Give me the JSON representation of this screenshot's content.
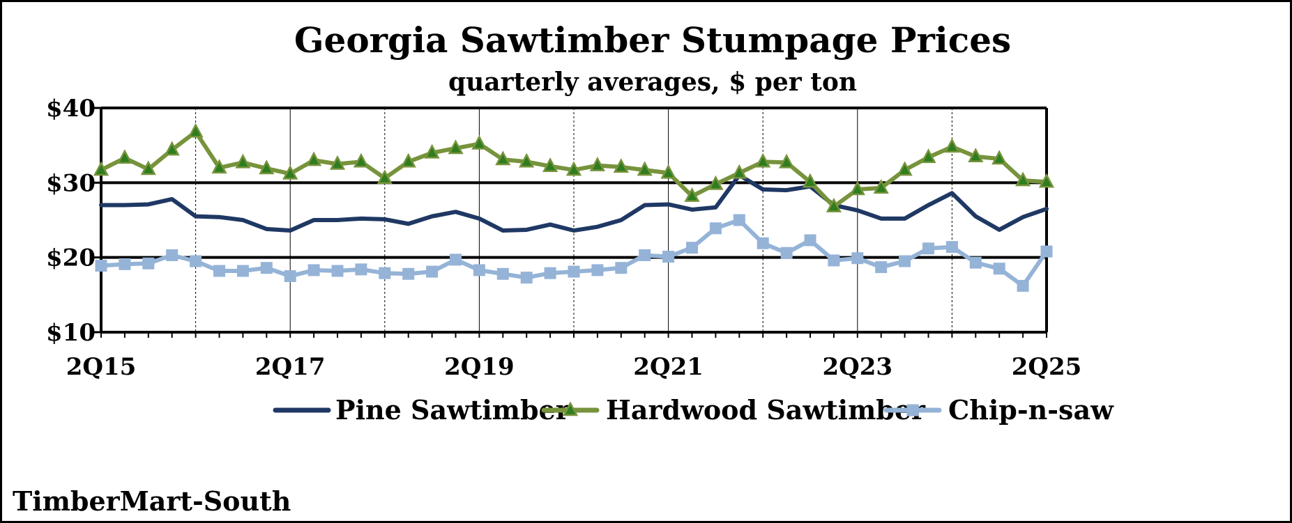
{
  "chart_data": {
    "type": "line",
    "title": "Georgia Sawtimber Stumpage Prices",
    "subtitle": "quarterly averages, $ per ton",
    "source": "TimberMart-South",
    "ylim": [
      10,
      40
    ],
    "y_ticks": [
      10,
      20,
      30,
      40
    ],
    "y_tick_labels": [
      "$10",
      "$20",
      "$30",
      "$40"
    ],
    "x": [
      "2Q15",
      "3Q15",
      "4Q15",
      "1Q16",
      "2Q16",
      "3Q16",
      "4Q16",
      "1Q17",
      "2Q17",
      "3Q17",
      "4Q17",
      "1Q18",
      "2Q18",
      "3Q18",
      "4Q18",
      "1Q19",
      "2Q19",
      "3Q19",
      "4Q19",
      "1Q20",
      "2Q20",
      "3Q20",
      "4Q20",
      "1Q21",
      "2Q21",
      "3Q21",
      "4Q21",
      "1Q22",
      "2Q22",
      "3Q22",
      "4Q22",
      "1Q23",
      "2Q23",
      "3Q23",
      "4Q23",
      "1Q24",
      "2Q24",
      "3Q24",
      "4Q24",
      "1Q25",
      "2Q25"
    ],
    "x_tick_labels": [
      "2Q15",
      "2Q17",
      "2Q19",
      "2Q21",
      "2Q23",
      "2Q25"
    ],
    "grid": {
      "horizontal": true,
      "vertical": true
    },
    "legend_position": "bottom",
    "series": [
      {
        "name": "Pine Sawtimber",
        "color": "#1f3864",
        "marker": "none",
        "values": [
          27.0,
          27.0,
          27.1,
          27.8,
          25.5,
          25.4,
          25.0,
          23.8,
          23.6,
          25.0,
          25.0,
          25.2,
          25.1,
          24.5,
          25.5,
          26.1,
          25.2,
          23.6,
          23.7,
          24.4,
          23.6,
          24.1,
          25.0,
          27.0,
          27.1,
          26.4,
          26.7,
          31.0,
          29.1,
          29.0,
          29.5,
          27.0,
          26.3,
          25.2,
          25.2,
          27.0,
          28.6,
          25.5,
          23.7,
          25.4,
          26.5
        ]
      },
      {
        "name": "Hardwood Sawtimber",
        "color": "#77933c",
        "marker": "triangle",
        "values": [
          31.7,
          33.3,
          31.8,
          34.4,
          36.8,
          32.0,
          32.7,
          31.9,
          31.2,
          33.0,
          32.5,
          32.8,
          30.6,
          32.8,
          34.0,
          34.6,
          35.2,
          33.1,
          32.8,
          32.2,
          31.7,
          32.3,
          32.1,
          31.7,
          31.3,
          28.2,
          29.8,
          31.3,
          32.8,
          32.7,
          30.1,
          26.8,
          29.1,
          29.3,
          31.7,
          33.4,
          34.8,
          33.5,
          33.2,
          30.3,
          30.1
        ]
      },
      {
        "name": "Chip-n-saw",
        "color": "#95b3d7",
        "marker": "square",
        "values": [
          18.9,
          19.1,
          19.2,
          20.3,
          19.5,
          18.2,
          18.2,
          18.6,
          17.5,
          18.3,
          18.2,
          18.4,
          17.9,
          17.8,
          18.1,
          19.7,
          18.3,
          17.8,
          17.3,
          17.9,
          18.1,
          18.3,
          18.6,
          20.3,
          20.1,
          21.3,
          23.9,
          25.0,
          21.9,
          20.6,
          22.3,
          19.6,
          19.9,
          18.7,
          19.5,
          21.2,
          21.4,
          19.3,
          18.5,
          16.2,
          20.8
        ]
      }
    ]
  }
}
